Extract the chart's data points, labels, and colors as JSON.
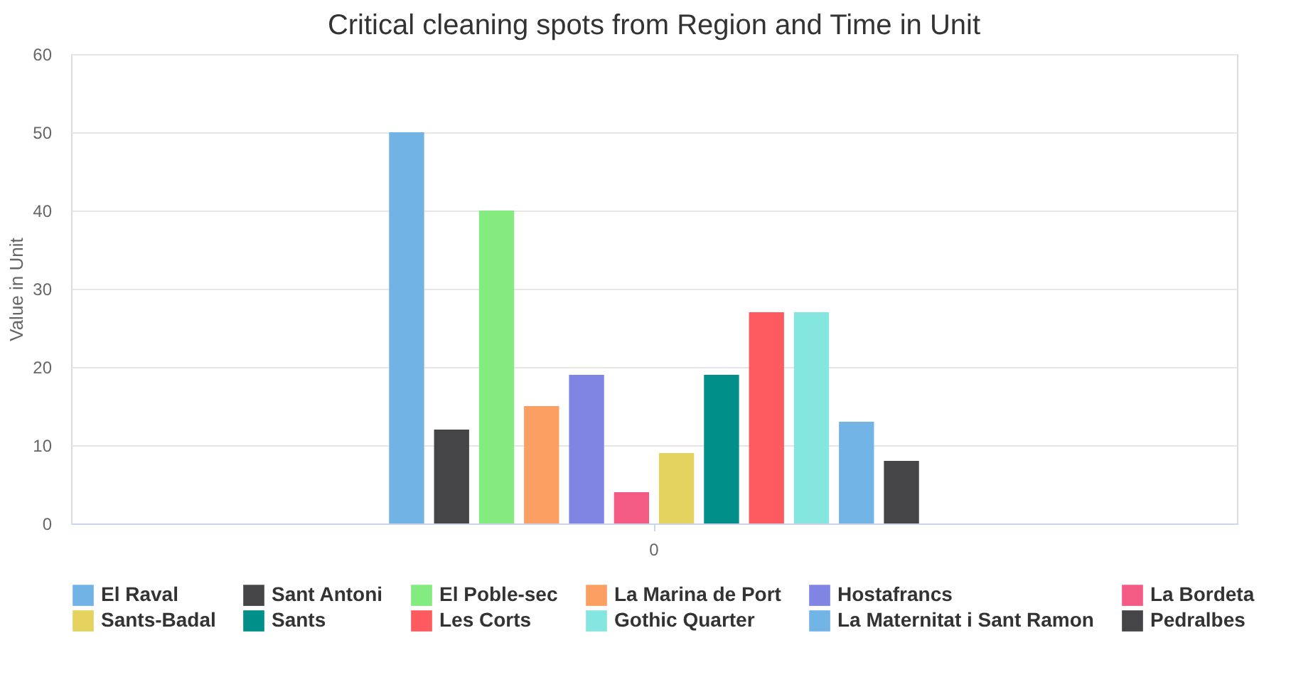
{
  "chart_data": {
    "type": "bar",
    "title": "Critical cleaning spots from Region and Time in Unit",
    "ylabel": "Value in Unit",
    "categories": [
      "0"
    ],
    "series": [
      {
        "name": "El Raval",
        "color": "#72b3e6",
        "values": [
          50
        ]
      },
      {
        "name": "Sant Antoni",
        "color": "#454548",
        "values": [
          12
        ]
      },
      {
        "name": "El Poble-sec",
        "color": "#83eb80",
        "values": [
          40
        ]
      },
      {
        "name": "La Marina de Port",
        "color": "#fb9f62",
        "values": [
          15
        ]
      },
      {
        "name": "Hostafrancs",
        "color": "#8085e4",
        "values": [
          19
        ]
      },
      {
        "name": "La Bordeta",
        "color": "#f45b84",
        "values": [
          4
        ]
      },
      {
        "name": "Sants-Badal",
        "color": "#e4d35f",
        "values": [
          9
        ]
      },
      {
        "name": "Sants",
        "color": "#008f89",
        "values": [
          19
        ]
      },
      {
        "name": "Les Corts",
        "color": "#fd5b5f",
        "values": [
          27
        ]
      },
      {
        "name": "Gothic Quarter",
        "color": "#85e6df",
        "values": [
          27
        ]
      },
      {
        "name": "La Maternitat i Sant Ramon",
        "color": "#73b4e7",
        "values": [
          13
        ]
      },
      {
        "name": "Pedralbes",
        "color": "#454548",
        "values": [
          8
        ]
      }
    ],
    "ylim": [
      0,
      60
    ],
    "yticks": [
      0,
      10,
      20,
      30,
      40,
      50,
      60
    ],
    "grid": "y",
    "legend": "bottom"
  }
}
